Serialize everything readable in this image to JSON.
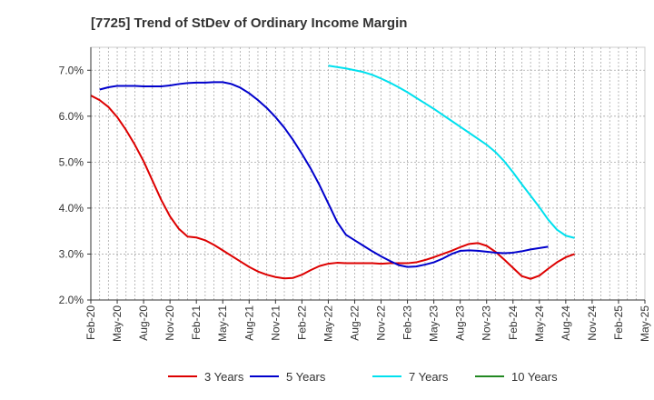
{
  "chart_data": {
    "type": "line",
    "title": "[7725]  Trend of StDev of Ordinary Income Margin",
    "xlabel": "",
    "ylabel": "",
    "ylim": [
      2.0,
      7.5
    ],
    "y_ticks": [
      2.0,
      3.0,
      4.0,
      5.0,
      6.0,
      7.0
    ],
    "y_tick_labels": [
      "2.0%",
      "3.0%",
      "4.0%",
      "5.0%",
      "6.0%",
      "7.0%"
    ],
    "x_tick_labels": [
      "Feb-20",
      "May-20",
      "Aug-20",
      "Nov-20",
      "Feb-21",
      "May-21",
      "Aug-21",
      "Nov-21",
      "Feb-22",
      "May-22",
      "Aug-22",
      "Nov-22",
      "Feb-23",
      "May-23",
      "Aug-23",
      "Nov-23",
      "Feb-24",
      "May-24",
      "Aug-24",
      "Nov-24",
      "Feb-25",
      "May-25"
    ],
    "grid": true,
    "legend_position": "bottom",
    "series": [
      {
        "name": "3 Years",
        "color": "#dd0000",
        "start_index": 0,
        "values": [
          6.45,
          6.35,
          6.2,
          5.98,
          5.7,
          5.38,
          5.02,
          4.6,
          4.18,
          3.82,
          3.55,
          3.38,
          3.36,
          3.3,
          3.2,
          3.08,
          2.96,
          2.84,
          2.72,
          2.62,
          2.55,
          2.5,
          2.47,
          2.48,
          2.55,
          2.65,
          2.74,
          2.79,
          2.81,
          2.8,
          2.8,
          2.8,
          2.8,
          2.79,
          2.8,
          2.8,
          2.8,
          2.82,
          2.87,
          2.93,
          3.0,
          3.07,
          3.15,
          3.22,
          3.24,
          3.18,
          3.05,
          2.88,
          2.7,
          2.52,
          2.46,
          2.53,
          2.68,
          2.82,
          2.93,
          3.0
        ]
      },
      {
        "name": "5 Years",
        "color": "#0000cc",
        "start_index": 1,
        "values": [
          6.58,
          6.63,
          6.66,
          6.66,
          6.66,
          6.65,
          6.65,
          6.65,
          6.67,
          6.7,
          6.72,
          6.73,
          6.73,
          6.74,
          6.74,
          6.7,
          6.62,
          6.5,
          6.35,
          6.18,
          5.98,
          5.75,
          5.48,
          5.18,
          4.86,
          4.5,
          4.1,
          3.7,
          3.42,
          3.3,
          3.18,
          3.06,
          2.95,
          2.85,
          2.76,
          2.72,
          2.73,
          2.77,
          2.82,
          2.9,
          3.0,
          3.07,
          3.08,
          3.07,
          3.05,
          3.03,
          3.02,
          3.03,
          3.06,
          3.1,
          3.13,
          3.16
        ]
      },
      {
        "name": "7 Years",
        "color": "#00e0ee",
        "start_index": 27,
        "values": [
          7.1,
          7.07,
          7.04,
          7.0,
          6.96,
          6.9,
          6.82,
          6.73,
          6.63,
          6.52,
          6.4,
          6.28,
          6.16,
          6.03,
          5.9,
          5.77,
          5.64,
          5.51,
          5.38,
          5.22,
          5.02,
          4.78,
          4.52,
          4.27,
          4.02,
          3.75,
          3.53,
          3.4,
          3.35
        ]
      },
      {
        "name": "10 Years",
        "color": "#228822",
        "start_index": 0,
        "values": []
      }
    ]
  }
}
